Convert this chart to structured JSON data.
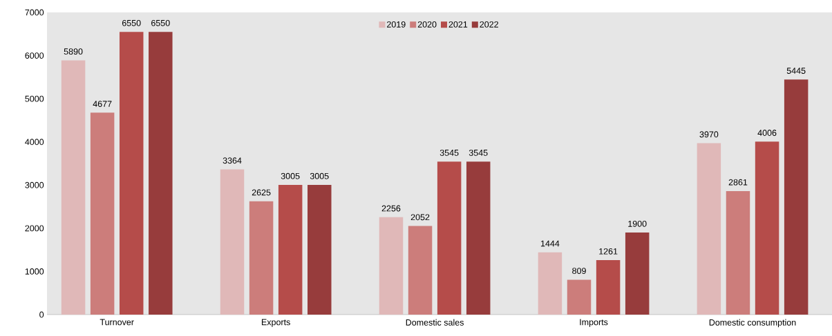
{
  "chart_data": {
    "type": "bar",
    "categories": [
      "Turnover",
      "Exports",
      "Domestic sales",
      "Imports",
      "Domestic consumption"
    ],
    "series": [
      {
        "name": "2019",
        "color": "#e0b8b8",
        "values": [
          5890,
          3364,
          2256,
          1444,
          3970
        ]
      },
      {
        "name": "2020",
        "color": "#cc7d7b",
        "values": [
          4677,
          2625,
          2052,
          809,
          2861
        ]
      },
      {
        "name": "2021",
        "color": "#b54c4a",
        "values": [
          6550,
          3005,
          3545,
          1261,
          4006
        ]
      },
      {
        "name": "2022",
        "color": "#973c3c",
        "values": [
          6550,
          3005,
          3545,
          1900,
          5445
        ]
      }
    ],
    "ylim": [
      0,
      7000
    ],
    "yticks": [
      0,
      1000,
      2000,
      3000,
      4000,
      5000,
      6000,
      7000
    ],
    "data_labels": true,
    "legend": "top"
  }
}
